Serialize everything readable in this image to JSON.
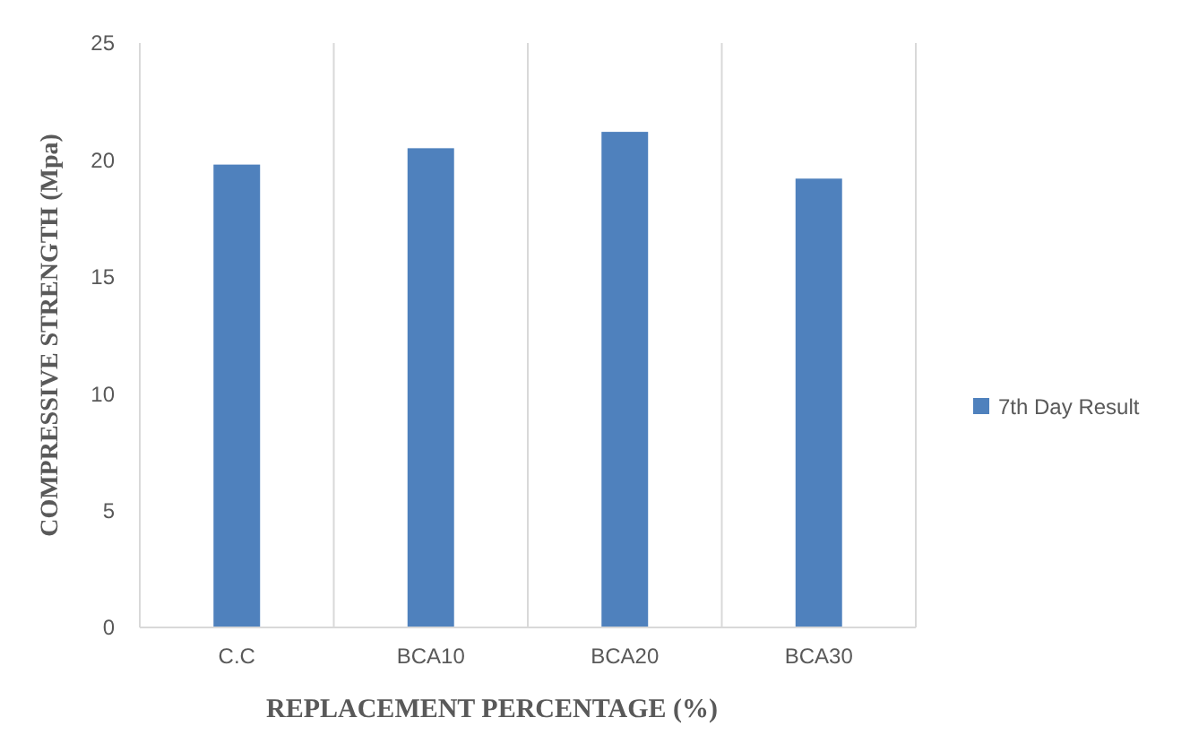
{
  "chart_data": {
    "type": "bar",
    "xlabel": "REPLACEMENT PERCENTAGE (%)",
    "ylabel": "COMPRESSIVE STRENGTH (Mpa)",
    "categories": [
      "C.C",
      "BCA10",
      "BCA20",
      "BCA30"
    ],
    "series": [
      {
        "name": "7th Day Result",
        "color": "#4f81bd",
        "values": [
          19.8,
          20.5,
          21.2,
          19.2
        ]
      }
    ],
    "ylim": [
      0,
      25
    ],
    "yticks": [
      0,
      5,
      10,
      15,
      20,
      25
    ],
    "grid": "x",
    "legend": "right"
  }
}
